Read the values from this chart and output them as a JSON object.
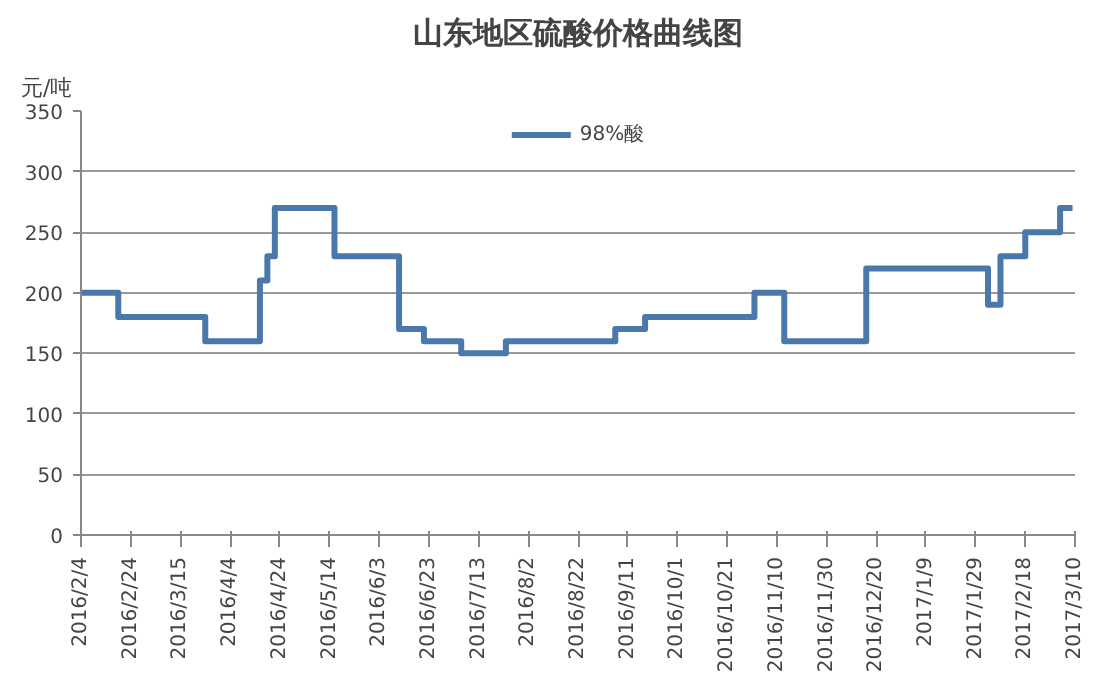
{
  "chart_data": {
    "type": "step",
    "title": "山东地区硫酸价格曲线图",
    "ylabel": "元/吨",
    "x": [
      "2016-02-04",
      "2016-02-19",
      "2016-03-25",
      "2016-04-16",
      "2016-04-19",
      "2016-04-22",
      "2016-05-16",
      "2016-06-11",
      "2016-06-21",
      "2016-07-06",
      "2016-07-24",
      "2016-09-06",
      "2016-09-18",
      "2016-11-01",
      "2016-11-13",
      "2016-12-16",
      "2017-02-03",
      "2017-02-08",
      "2017-02-18",
      "2017-03-04",
      "2017-03-09"
    ],
    "series": [
      {
        "name": "98%酸",
        "color": "#4a78ab",
        "values": [
          200,
          180,
          160,
          210,
          230,
          270,
          230,
          170,
          160,
          150,
          160,
          170,
          180,
          200,
          160,
          220,
          190,
          230,
          250,
          270,
          270
        ]
      }
    ],
    "xlim": [
      "2016-02-04",
      "2017-03-10"
    ],
    "xticks": [
      {
        "value": "2016-02-04",
        "label": "2016/2/4"
      },
      {
        "value": "2016-02-24",
        "label": "2016/2/24"
      },
      {
        "value": "2016-03-15",
        "label": "2016/3/15"
      },
      {
        "value": "2016-04-04",
        "label": "2016/4/4"
      },
      {
        "value": "2016-04-24",
        "label": "2016/4/24"
      },
      {
        "value": "2016-05-14",
        "label": "2016/5/14"
      },
      {
        "value": "2016-06-03",
        "label": "2016/6/3"
      },
      {
        "value": "2016-06-23",
        "label": "2016/6/23"
      },
      {
        "value": "2016-07-13",
        "label": "2016/7/13"
      },
      {
        "value": "2016-08-02",
        "label": "2016/8/2"
      },
      {
        "value": "2016-08-22",
        "label": "2016/8/22"
      },
      {
        "value": "2016-09-11",
        "label": "2016/9/11"
      },
      {
        "value": "2016-10-01",
        "label": "2016/10/1"
      },
      {
        "value": "2016-10-21",
        "label": "2016/10/21"
      },
      {
        "value": "2016-11-10",
        "label": "2016/11/10"
      },
      {
        "value": "2016-11-30",
        "label": "2016/11/30"
      },
      {
        "value": "2016-12-20",
        "label": "2016/12/20"
      },
      {
        "value": "2017-01-09",
        "label": "2017/1/9"
      },
      {
        "value": "2017-01-29",
        "label": "2017/1/29"
      },
      {
        "value": "2017-02-18",
        "label": "2017/2/18"
      },
      {
        "value": "2017-03-10",
        "label": "2017/3/10"
      }
    ],
    "ylim": [
      0,
      350
    ],
    "yticks": [
      0,
      50,
      100,
      150,
      200,
      250,
      300,
      350
    ],
    "grid": "y",
    "legend": "top"
  }
}
